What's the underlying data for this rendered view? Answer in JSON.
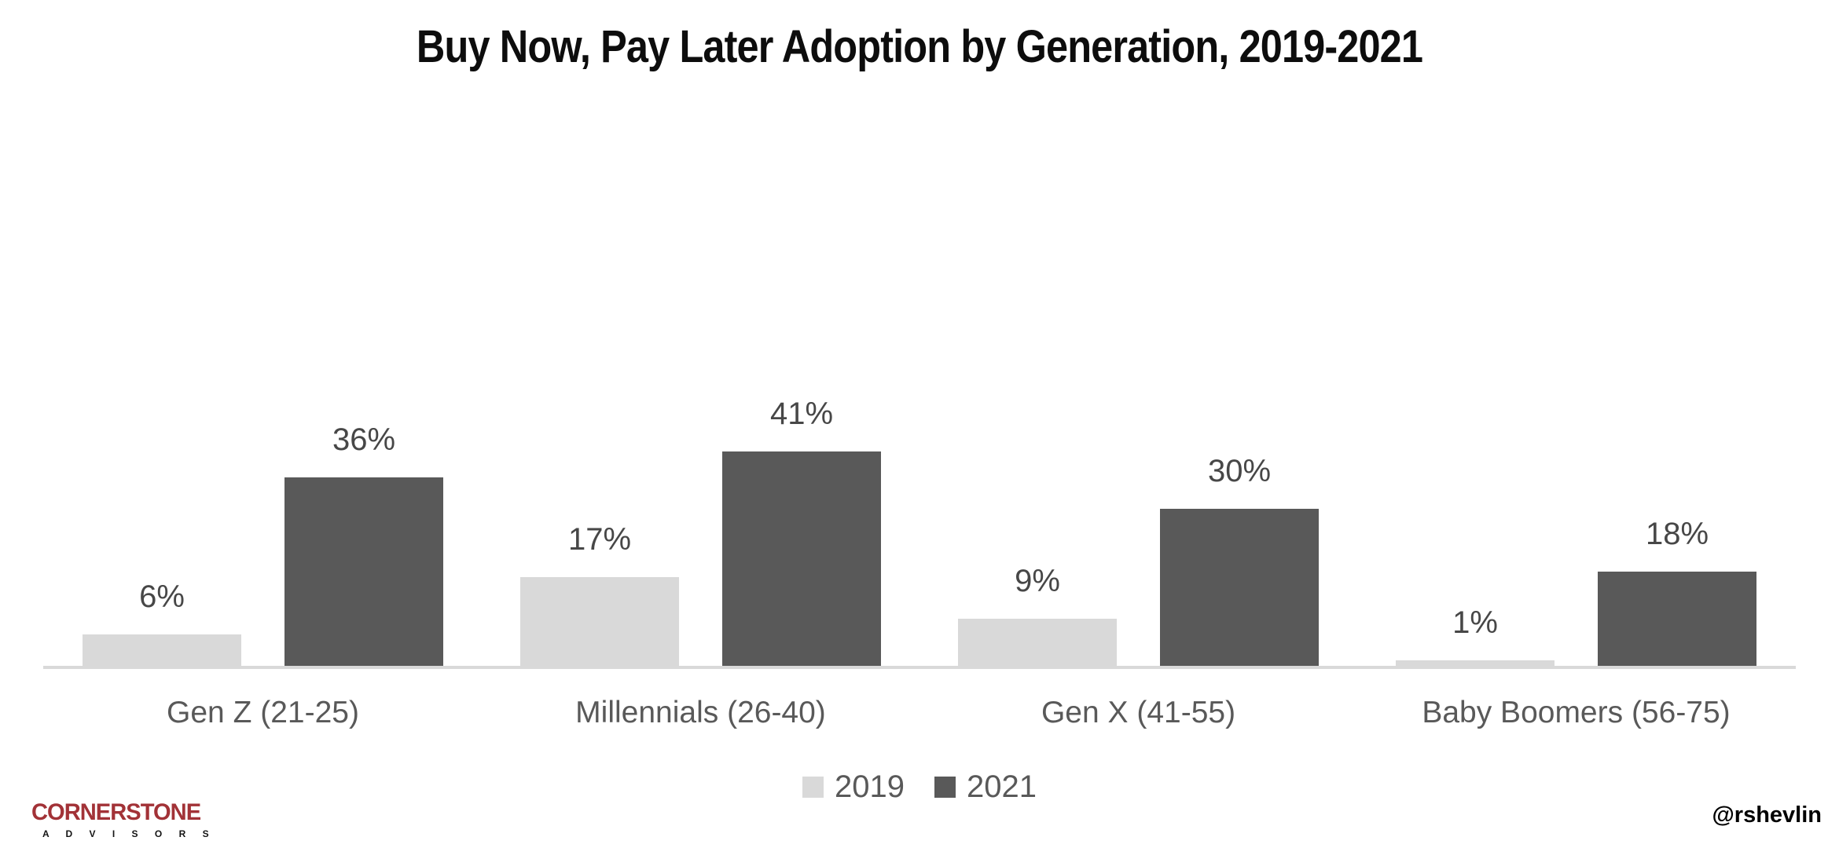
{
  "page": {
    "title": "Buy Now, Pay Later Adoption by Generation, 2019-2021"
  },
  "chart_data": {
    "type": "bar",
    "title": "Buy Now, Pay Later Adoption by Generation, 2019-2021",
    "categories": [
      "Gen Z (21-25)",
      "Millennials (26-40)",
      "Gen X (41-55)",
      "Baby Boomers (56-75)"
    ],
    "series": [
      {
        "name": "2019",
        "color": "#D9D9D9",
        "values": [
          6,
          17,
          9,
          1
        ]
      },
      {
        "name": "2021",
        "color": "#595959",
        "values": [
          36,
          41,
          30,
          18
        ]
      }
    ],
    "value_suffix": "%",
    "data_labels": true,
    "xlabel": "",
    "ylabel": "",
    "ylim": [
      0,
      45
    ],
    "grid": false,
    "legend_position": "bottom"
  },
  "colors": {
    "bar_2019": "#D9D9D9",
    "bar_2021": "#595959",
    "axis_line": "#D9D9D9",
    "value_label": "#474747",
    "category_label": "#595959",
    "legend_label": "#595959",
    "title": "#0D0D0D",
    "logo_red": "#A23237",
    "handle": "#000000"
  },
  "footer": {
    "logo_line1": "CORNERSTONE",
    "logo_line2": "A D V I S O R S",
    "handle": "@rshevlin"
  }
}
